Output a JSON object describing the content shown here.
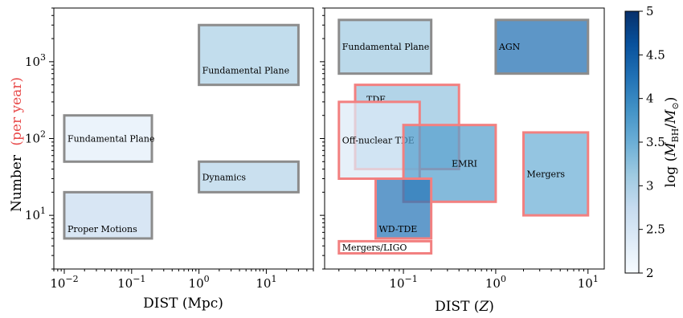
{
  "colors": {
    "cmap": [
      "#f7fbff",
      "#deebf7",
      "#c6dbef",
      "#9ecae1",
      "#6baed6",
      "#4292c6",
      "#2171b5",
      "#08519c",
      "#08306b"
    ],
    "edge_gray": "#8c8c8c",
    "edge_red": "#f28080",
    "per_year_red": "#e84a4a",
    "lim_ligo": "#ffffff"
  },
  "chart_data": [
    {
      "type": "region",
      "xscale": "log",
      "yscale": "log",
      "xlim": [
        0.007,
        50
      ],
      "ylim": [
        2,
        5000
      ],
      "xlabel": "DIST (Mpc)",
      "ylabel": "Number",
      "ylabel_suffix": "(per year)",
      "xticks": [
        {
          "value": 0.01,
          "base": "10",
          "exp": "−2"
        },
        {
          "value": 0.1,
          "base": "10",
          "exp": "−1"
        },
        {
          "value": 1,
          "base": "10",
          "exp": "0"
        },
        {
          "value": 10,
          "base": "10",
          "exp": "1"
        }
      ],
      "yticks": [
        {
          "value": 10,
          "base": "10",
          "exp": "1"
        },
        {
          "value": 100,
          "base": "10",
          "exp": "2"
        },
        {
          "value": 1000,
          "base": "10",
          "exp": "3"
        }
      ],
      "regions": [
        {
          "label": "Fundamental Plane",
          "x": [
            0.01,
            0.2
          ],
          "y": [
            50,
            200
          ],
          "logm": 2.3,
          "edge": "gray"
        },
        {
          "label": "Proper Motions",
          "x": [
            0.01,
            0.2
          ],
          "y": [
            5,
            20
          ],
          "logm": 2.7,
          "edge": "gray"
        },
        {
          "label": "Fundamental Plane",
          "x": [
            1,
            30
          ],
          "y": [
            500,
            3000
          ],
          "logm": 3.0,
          "edge": "gray"
        },
        {
          "label": "Dynamics",
          "x": [
            1,
            30
          ],
          "y": [
            20,
            50
          ],
          "logm": 2.9,
          "edge": "gray"
        }
      ]
    },
    {
      "type": "region",
      "xscale": "log",
      "yscale": "log",
      "xlim": [
        0.014,
        15
      ],
      "ylim": [
        2,
        5000
      ],
      "xlabel": "DIST (Z)",
      "xticks": [
        {
          "value": 0.1,
          "base": "10",
          "exp": "−1"
        },
        {
          "value": 1,
          "base": "10",
          "exp": "0"
        },
        {
          "value": 10,
          "base": "10",
          "exp": "1"
        }
      ],
      "regions": [
        {
          "label": "Fundamental Plane",
          "x": [
            0.02,
            0.2
          ],
          "y": [
            700,
            3500
          ],
          "logm": 3.1,
          "edge": "gray"
        },
        {
          "label": "AGN",
          "x": [
            1,
            10
          ],
          "y": [
            700,
            3500
          ],
          "logm": 4.3,
          "edge": "gray"
        },
        {
          "label": "TDE",
          "x": [
            0.03,
            0.4
          ],
          "y": [
            40,
            500
          ],
          "logm": 3.2,
          "edge": "red"
        },
        {
          "label": "Off-nuclear TDE",
          "x": [
            0.02,
            0.15
          ],
          "y": [
            30,
            300
          ],
          "logm": 2.4,
          "edge": "red"
        },
        {
          "label": "EMRI",
          "x": [
            0.1,
            1.0
          ],
          "y": [
            15,
            150
          ],
          "logm": 3.7,
          "edge": "red"
        },
        {
          "label": "Mergers",
          "x": [
            2,
            10
          ],
          "y": [
            10,
            120
          ],
          "logm": 3.5,
          "edge": "red"
        },
        {
          "label": "WD-TDE",
          "x": [
            0.05,
            0.2
          ],
          "y": [
            5,
            30
          ],
          "logm": 4.2,
          "edge": "red"
        },
        {
          "label": "Mergers/LIGO",
          "x": [
            0.02,
            0.2
          ],
          "y": [
            3.2,
            4.6
          ],
          "logm": 2.0,
          "edge": "red"
        }
      ]
    }
  ],
  "colorbar": {
    "min": 2,
    "max": 5,
    "ticks": [
      "2",
      "2.5",
      "3",
      "3.5",
      "4",
      "4.5",
      "5"
    ],
    "label": "log (M_BH/M_⊙)"
  }
}
